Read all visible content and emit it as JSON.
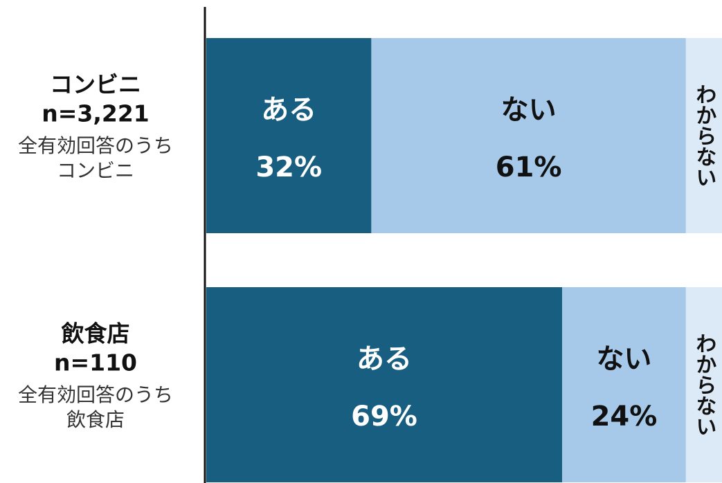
{
  "chart_data": {
    "type": "stacked_bar_horizontal",
    "categories": [
      "コンビニ",
      "飲食店"
    ],
    "n_labels": [
      "n=3,221",
      "n=110"
    ],
    "sublabels": [
      [
        "全有効回答のうち",
        "コンビニ"
      ],
      [
        "全有効回答のうち",
        "飲食店"
      ]
    ],
    "series": [
      {
        "name": "ある",
        "color": "#175e80",
        "text_color": "#ffffff",
        "values": [
          32,
          69
        ],
        "value_labels": [
          "32%",
          "69%"
        ]
      },
      {
        "name": "ない",
        "color": "#a6c9ea",
        "text_color": "#111111",
        "values": [
          61,
          24
        ],
        "value_labels": [
          "61%",
          "24%"
        ]
      },
      {
        "name": "わからない",
        "color": "#dce9f6",
        "text_color": "#111111",
        "values": [
          7,
          7
        ]
      }
    ],
    "xlim": [
      0,
      100
    ]
  }
}
